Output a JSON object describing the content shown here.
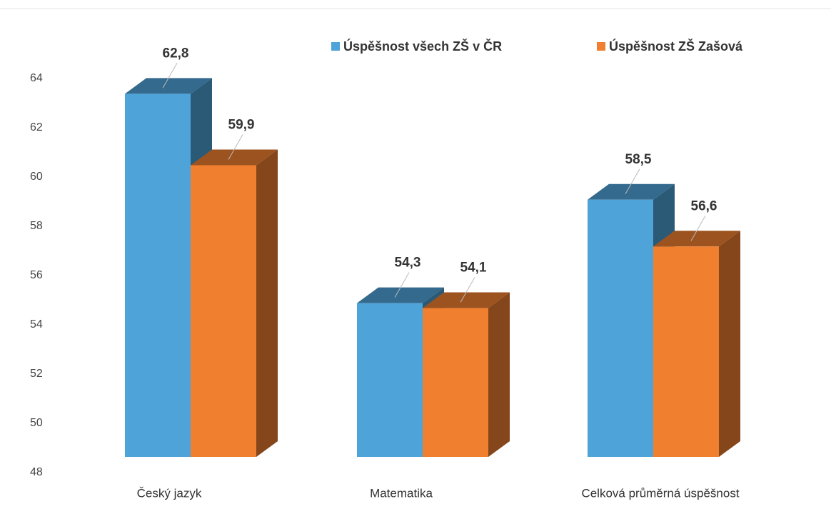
{
  "chart_data": {
    "type": "bar3d",
    "categories": [
      "Český jazyk",
      "Matematika",
      "Celková průměrná úspěšnost"
    ],
    "series": [
      {
        "name": "Úspěšnost všech ZŠ v ČR",
        "color": "#4ea3d9",
        "values": [
          62.8,
          54.3,
          58.5
        ],
        "value_labels": [
          "62,8",
          "54,3",
          "58,5"
        ]
      },
      {
        "name": "Úspěšnost ZŠ Zašová",
        "color": "#f07f2f",
        "values": [
          59.9,
          54.1,
          56.6
        ],
        "value_labels": [
          "59,9",
          "54,1",
          "56,6"
        ]
      }
    ],
    "ylim": [
      48,
      64
    ],
    "yticks": [
      48,
      50,
      52,
      54,
      56,
      58,
      60,
      62,
      64
    ],
    "grid": false,
    "legend": "top"
  }
}
